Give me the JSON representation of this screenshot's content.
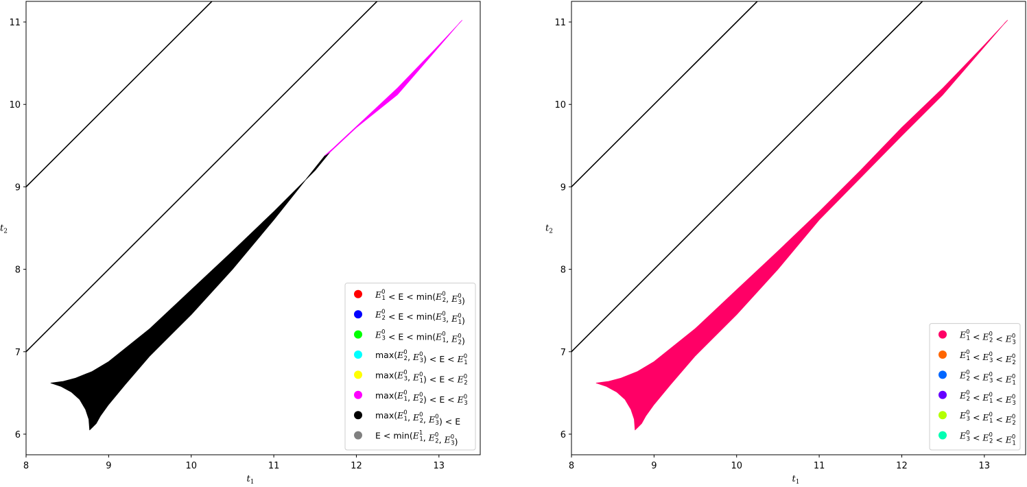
{
  "chart_data": [
    {
      "type": "area",
      "xlabel": "t",
      "xlabel_sub": "1",
      "ylabel": "t",
      "ylabel_sub": "2",
      "xlim": [
        8.0,
        13.5
      ],
      "ylim": [
        5.75,
        11.25
      ],
      "xticks": [
        8,
        9,
        10,
        11,
        12,
        13
      ],
      "yticks": [
        6,
        7,
        8,
        9,
        10,
        11
      ],
      "boundary_lines": [
        {
          "color": "#000000",
          "points": [
            [
              8.0,
              9.0
            ],
            [
              10.25,
              11.25
            ]
          ]
        },
        {
          "color": "#000000",
          "points": [
            [
              8.0,
              7.0
            ],
            [
              12.25,
              11.25
            ]
          ]
        }
      ],
      "regions": [
        {
          "color": "#000000",
          "polygon": [
            [
              8.3,
              6.62
            ],
            [
              8.45,
              6.64
            ],
            [
              8.6,
              6.68
            ],
            [
              8.8,
              6.76
            ],
            [
              9.0,
              6.88
            ],
            [
              9.5,
              7.28
            ],
            [
              10.0,
              7.75
            ],
            [
              10.5,
              8.22
            ],
            [
              11.0,
              8.7
            ],
            [
              11.5,
              9.2
            ],
            [
              11.68,
              9.42
            ],
            [
              11.62,
              9.38
            ],
            [
              11.0,
              8.6
            ],
            [
              10.5,
              8.0
            ],
            [
              10.0,
              7.45
            ],
            [
              9.5,
              6.95
            ],
            [
              9.2,
              6.6
            ],
            [
              9.0,
              6.36
            ],
            [
              8.9,
              6.22
            ],
            [
              8.85,
              6.13
            ],
            [
              8.8,
              6.08
            ],
            [
              8.77,
              6.05
            ],
            [
              8.76,
              6.18
            ],
            [
              8.72,
              6.3
            ],
            [
              8.65,
              6.42
            ],
            [
              8.55,
              6.51
            ],
            [
              8.42,
              6.58
            ]
          ]
        },
        {
          "color": "#ff00ff",
          "polygon": [
            [
              11.62,
              9.38
            ],
            [
              11.72,
              9.47
            ],
            [
              12.5,
              10.2
            ],
            [
              13.0,
              10.72
            ],
            [
              13.28,
              11.02
            ],
            [
              13.25,
              10.99
            ],
            [
              12.5,
              10.12
            ],
            [
              12.0,
              9.72
            ],
            [
              11.68,
              9.42
            ]
          ]
        }
      ],
      "legend": {
        "position": "lower right",
        "entries": [
          {
            "label": "E¹⁰ < E < min(E²⁰, E³⁰)",
            "color": "#ff0000"
          },
          {
            "label": "E²⁰ < E < min(E³⁰, E¹⁰)",
            "color": "#0000ff"
          },
          {
            "label": "E³⁰ < E < min(E¹⁰, E²⁰)",
            "color": "#00ff00"
          },
          {
            "label": "max(E²⁰, E³⁰) < E < E¹⁰",
            "color": "#00ffff"
          },
          {
            "label": "max(E³⁰, E¹⁰) < E < E²⁰",
            "color": "#ffff00"
          },
          {
            "label": "max(E¹⁰, E²⁰) < E < E³⁰",
            "color": "#ff00ff"
          },
          {
            "label": "max(E¹⁰, E²⁰, E³⁰) < E",
            "color": "#000000"
          },
          {
            "label": "E < min(E⁰¹, E²⁰, E³⁰)",
            "color": "#808080"
          }
        ]
      }
    },
    {
      "type": "area",
      "xlabel": "t",
      "xlabel_sub": "1",
      "ylabel": "t",
      "ylabel_sub": "2",
      "xlim": [
        8.0,
        13.5
      ],
      "ylim": [
        5.75,
        11.25
      ],
      "xticks": [
        8,
        9,
        10,
        11,
        12,
        13
      ],
      "yticks": [
        6,
        7,
        8,
        9,
        10,
        11
      ],
      "boundary_lines": [
        {
          "color": "#000000",
          "points": [
            [
              8.0,
              9.0
            ],
            [
              10.25,
              11.25
            ]
          ]
        },
        {
          "color": "#000000",
          "points": [
            [
              8.0,
              7.0
            ],
            [
              12.25,
              11.25
            ]
          ]
        }
      ],
      "regions": [
        {
          "color": "#ff0066",
          "polygon": [
            [
              8.3,
              6.62
            ],
            [
              8.45,
              6.64
            ],
            [
              8.6,
              6.68
            ],
            [
              8.8,
              6.76
            ],
            [
              9.0,
              6.88
            ],
            [
              9.5,
              7.28
            ],
            [
              10.0,
              7.75
            ],
            [
              10.5,
              8.22
            ],
            [
              11.0,
              8.7
            ],
            [
              11.5,
              9.2
            ],
            [
              12.0,
              9.72
            ],
            [
              12.5,
              10.2
            ],
            [
              13.0,
              10.72
            ],
            [
              13.28,
              11.02
            ],
            [
              13.25,
              10.99
            ],
            [
              12.5,
              10.12
            ],
            [
              12.0,
              9.62
            ],
            [
              11.0,
              8.6
            ],
            [
              10.5,
              8.0
            ],
            [
              10.0,
              7.45
            ],
            [
              9.5,
              6.95
            ],
            [
              9.2,
              6.6
            ],
            [
              9.0,
              6.36
            ],
            [
              8.9,
              6.22
            ],
            [
              8.85,
              6.13
            ],
            [
              8.8,
              6.08
            ],
            [
              8.77,
              6.05
            ],
            [
              8.76,
              6.18
            ],
            [
              8.72,
              6.3
            ],
            [
              8.65,
              6.42
            ],
            [
              8.55,
              6.51
            ],
            [
              8.42,
              6.58
            ]
          ]
        }
      ],
      "legend": {
        "position": "lower right",
        "entries": [
          {
            "label": "E¹⁰ < E²⁰ < E³⁰",
            "color": "#ff0066"
          },
          {
            "label": "E¹⁰ < E³⁰ < E²⁰",
            "color": "#ff6600"
          },
          {
            "label": "E²⁰ < E³⁰ < E¹⁰",
            "color": "#0066ff"
          },
          {
            "label": "E²⁰ < E¹⁰ < E³⁰",
            "color": "#6600ff"
          },
          {
            "label": "E³⁰ < E¹⁰ < E²⁰",
            "color": "#b3ff00"
          },
          {
            "label": "E³⁰ < E²⁰ < E¹⁰",
            "color": "#00ffb3"
          }
        ]
      }
    }
  ]
}
